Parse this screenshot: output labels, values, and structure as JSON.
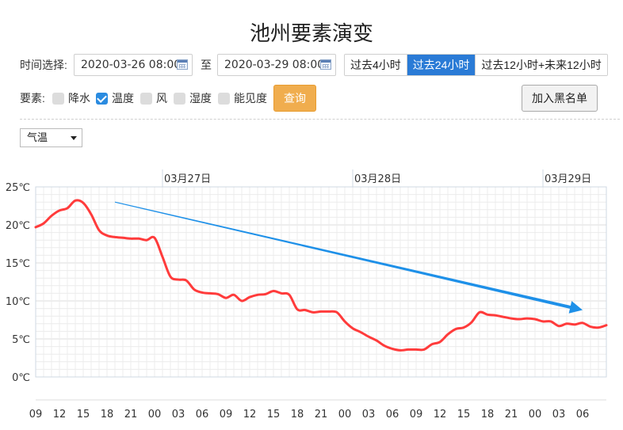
{
  "page": {
    "title": "池州要素演变"
  },
  "time_select": {
    "label": "时间选择:",
    "start": "2020-03-26 08:00",
    "to_label": "至",
    "end": "2020-03-29 08:00",
    "ranges": [
      {
        "label": "过去4小时",
        "active": false
      },
      {
        "label": "过去24小时",
        "active": true
      },
      {
        "label": "过去12小时+未来12小时",
        "active": false
      }
    ]
  },
  "elements": {
    "label": "要素:",
    "items": [
      {
        "label": "降水",
        "checked": false
      },
      {
        "label": "温度",
        "checked": true
      },
      {
        "label": "风",
        "checked": false
      },
      {
        "label": "湿度",
        "checked": false
      },
      {
        "label": "能见度",
        "checked": false
      }
    ],
    "query_label": "查询",
    "blacklist_label": "加入黑名单"
  },
  "variable_select": {
    "value": "气温"
  },
  "chart_data": {
    "type": "line",
    "title": "",
    "xlabel": "",
    "ylabel": "",
    "ylim": [
      0,
      25
    ],
    "yticks": [
      "0℃",
      "5℃",
      "10℃",
      "15℃",
      "20℃",
      "25℃"
    ],
    "day_labels": [
      {
        "label": "03月27日",
        "hour_index": 16
      },
      {
        "label": "03月28日",
        "hour_index": 40
      },
      {
        "label": "03月29日",
        "hour_index": 64
      }
    ],
    "x_ticks": [
      "09",
      "12",
      "15",
      "18",
      "21",
      "00",
      "03",
      "06",
      "09",
      "12",
      "15",
      "18",
      "21",
      "00",
      "03",
      "06",
      "09",
      "12",
      "15",
      "18",
      "21",
      "00",
      "03",
      "06"
    ],
    "x_tick_step_hours": 3,
    "grid": true,
    "color": "#ff3b3b",
    "series": [
      {
        "values": [
          19.7,
          20.2,
          21.2,
          21.9,
          22.2,
          23.2,
          22.9,
          21.4,
          19.3,
          18.6,
          18.4,
          18.3,
          18.2,
          18.2,
          18.0,
          18.3,
          15.8,
          13.2,
          12.8,
          12.7,
          11.5,
          11.1,
          11.0,
          10.9,
          10.4,
          10.8,
          10.0,
          10.5,
          10.8,
          10.9,
          11.3,
          11.0,
          10.8,
          8.9,
          8.8,
          8.5,
          8.6,
          8.6,
          8.5,
          7.3,
          6.4,
          5.9,
          5.3,
          4.8,
          4.1,
          3.7,
          3.5,
          3.6,
          3.6,
          3.6,
          4.3,
          4.6,
          5.6,
          6.3,
          6.5,
          7.2,
          8.5,
          8.2,
          8.1,
          7.9,
          7.7,
          7.6,
          7.7,
          7.6,
          7.3,
          7.3,
          6.7,
          7.0,
          6.9,
          7.1,
          6.6,
          6.5,
          6.8
        ]
      }
    ],
    "trend_arrow": {
      "start_hour": 10,
      "start_value": 23.0,
      "end_hour": 69,
      "end_value": 8.8,
      "color": "#1e90e8"
    }
  }
}
